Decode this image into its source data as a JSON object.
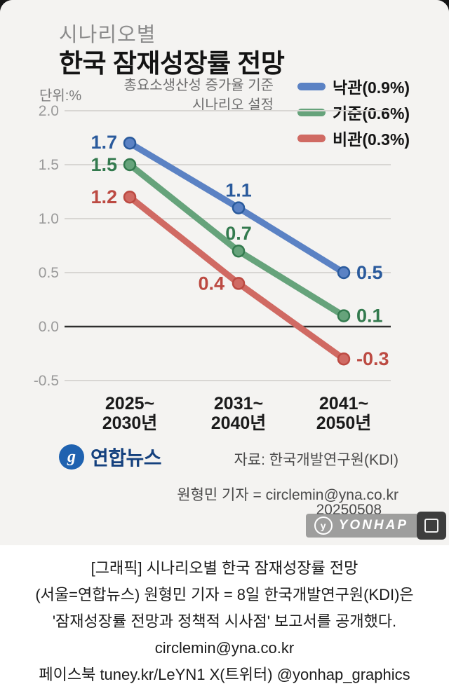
{
  "graphic": {
    "subtitle": "시나리오별",
    "title": "한국 잠재성장률 전망",
    "unit_label": "단위:%",
    "legend_note_line1": "총요소생산성 증가율 기준",
    "legend_note_line2": "시나리오 설정",
    "source": "자료: 한국개발연구원(KDI)",
    "credit": "원형민 기자 = circlemin@yna.co.kr",
    "date": "20250508",
    "logo": {
      "glyph": "g",
      "text": "연합뉴스"
    },
    "watermark": {
      "icon": "y",
      "text": "YONHAP"
    }
  },
  "chart_data": {
    "type": "line",
    "categories": [
      [
        "2025~",
        "2030년"
      ],
      [
        "2031~",
        "2040년"
      ],
      [
        "2041~",
        "2050년"
      ]
    ],
    "series": [
      {
        "name": "낙관(0.9%)",
        "color": "#5b82c4",
        "label_color": "#2a5a9c",
        "values": [
          1.7,
          1.1,
          0.5
        ]
      },
      {
        "name": "기준(0.6%)",
        "color": "#66a37b",
        "label_color": "#337a4e",
        "values": [
          1.5,
          0.7,
          0.1
        ]
      },
      {
        "name": "비관(0.3%)",
        "color": "#d06a63",
        "label_color": "#bc4a42",
        "values": [
          1.2,
          0.4,
          -0.3
        ]
      }
    ],
    "yticks": [
      "2.0",
      "1.5",
      "1.0",
      "0.5",
      "0.0",
      "-0.5"
    ],
    "ylim": [
      -0.5,
      2.0
    ],
    "grid": true,
    "legend_position": "top-right",
    "title": "시나리오별 한국 잠재성장률 전망",
    "ylabel": "단위:%"
  },
  "caption": {
    "lines": [
      "[그래픽] 시나리오별 한국 잠재성장률 전망",
      "(서울=연합뉴스) 원형민 기자 = 8일 한국개발연구원(KDI)은",
      "'잠재성장률 전망과 정책적 시사점' 보고서를 공개했다.",
      "circlemin@yna.co.kr",
      "페이스북 tuney.kr/LeYN1 X(트위터) @yonhap_graphics"
    ]
  }
}
